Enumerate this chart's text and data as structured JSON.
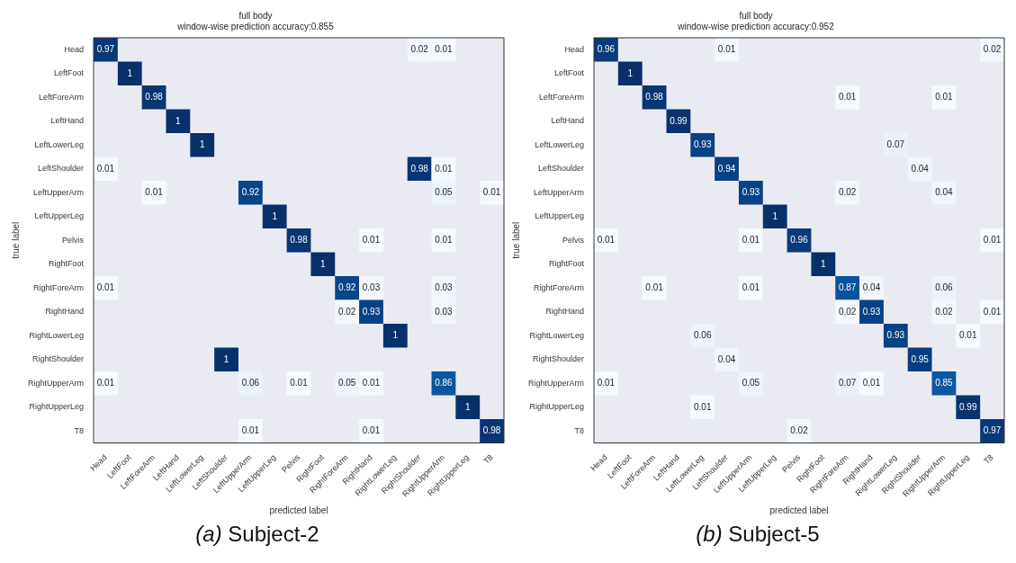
{
  "chart_data": [
    {
      "type": "heatmap",
      "title": "full body",
      "subtitle": "window-wise prediction accuracy:0.855",
      "xlabel": "predicted label",
      "ylabel": "true label",
      "annotations": [
        "(a) Subject-2"
      ],
      "data_labels": true,
      "categories": [
        "Head",
        "LeftFoot",
        "LeftForeArm",
        "LeftHand",
        "LeftLowerLeg",
        "LeftShoulder",
        "LeftUpperArm",
        "LeftUpperLeg",
        "Pelvis",
        "RightFoot",
        "RightForeArm",
        "RightHand",
        "RightLowerLeg",
        "RightShoulder",
        "RightUpperArm",
        "RightUpperLeg",
        "T8"
      ],
      "y_categories": [
        "Head",
        "LeftFoot",
        "LeftForeArm",
        "LeftHand",
        "LeftLowerLeg",
        "LeftShoulder",
        "LeftUpperArm",
        "LeftUpperLeg",
        "Pelvis",
        "RightFoot",
        "RightForeArm",
        "RightHand",
        "RightLowerLeg",
        "RightShoulder",
        "RightUpperArm",
        "RightUpperLeg",
        "T8"
      ],
      "cells": [
        [
          0.97,
          null,
          null,
          null,
          null,
          null,
          null,
          null,
          null,
          null,
          null,
          null,
          null,
          0.02,
          0.01,
          null,
          null
        ],
        [
          null,
          1,
          null,
          null,
          null,
          null,
          null,
          null,
          null,
          null,
          null,
          null,
          null,
          null,
          null,
          null,
          null
        ],
        [
          null,
          null,
          0.98,
          null,
          null,
          null,
          null,
          null,
          null,
          null,
          null,
          null,
          null,
          null,
          null,
          null,
          null
        ],
        [
          null,
          null,
          null,
          1,
          null,
          null,
          null,
          null,
          null,
          null,
          null,
          null,
          null,
          null,
          null,
          null,
          null
        ],
        [
          null,
          null,
          null,
          null,
          1,
          null,
          null,
          null,
          null,
          null,
          null,
          null,
          null,
          null,
          null,
          null,
          null
        ],
        [
          0.01,
          null,
          null,
          null,
          null,
          null,
          null,
          null,
          null,
          null,
          null,
          null,
          null,
          0.98,
          0.01,
          null,
          null
        ],
        [
          null,
          null,
          0.01,
          null,
          null,
          null,
          0.92,
          null,
          null,
          null,
          null,
          null,
          null,
          null,
          0.05,
          null,
          0.01
        ],
        [
          null,
          null,
          null,
          null,
          null,
          null,
          null,
          1,
          null,
          null,
          null,
          null,
          null,
          null,
          null,
          null,
          null
        ],
        [
          null,
          null,
          null,
          null,
          null,
          null,
          null,
          null,
          0.98,
          null,
          null,
          0.01,
          null,
          null,
          0.01,
          null,
          null
        ],
        [
          null,
          null,
          null,
          null,
          null,
          null,
          null,
          null,
          null,
          1,
          null,
          null,
          null,
          null,
          null,
          null,
          null
        ],
        [
          0.01,
          null,
          null,
          null,
          null,
          null,
          null,
          null,
          null,
          null,
          0.92,
          0.03,
          null,
          null,
          0.03,
          null,
          null
        ],
        [
          null,
          null,
          null,
          null,
          null,
          null,
          null,
          null,
          null,
          null,
          0.02,
          0.93,
          null,
          null,
          0.03,
          null,
          null
        ],
        [
          null,
          null,
          null,
          null,
          null,
          null,
          null,
          null,
          null,
          null,
          null,
          null,
          1,
          null,
          null,
          null,
          null
        ],
        [
          null,
          null,
          null,
          null,
          null,
          1,
          null,
          null,
          null,
          null,
          null,
          null,
          null,
          null,
          null,
          null,
          null
        ],
        [
          0.01,
          null,
          null,
          null,
          null,
          null,
          0.06,
          null,
          0.01,
          null,
          0.05,
          0.01,
          null,
          null,
          0.86,
          null,
          null
        ],
        [
          null,
          null,
          null,
          null,
          null,
          null,
          null,
          null,
          null,
          null,
          null,
          null,
          null,
          null,
          null,
          1,
          null
        ],
        [
          null,
          null,
          null,
          null,
          null,
          null,
          0.01,
          null,
          null,
          null,
          null,
          0.01,
          null,
          null,
          null,
          null,
          0.98
        ]
      ]
    },
    {
      "type": "heatmap",
      "title": "full body",
      "subtitle": "window-wise prediction accuracy:0.952",
      "xlabel": "predicted label",
      "ylabel": "true label",
      "annotations": [
        "(b) Subject-5"
      ],
      "data_labels": true,
      "categories": [
        "Head",
        "LeftFoot",
        "LeftForeArm",
        "LeftHand",
        "LeftLowerLeg",
        "LeftShoulder",
        "LeftUpperArm",
        "LeftUpperLeg",
        "Pelvis",
        "RightFoot",
        "RightForeArm",
        "RightHand",
        "RightLowerLeg",
        "RightShoulder",
        "RightUpperArm",
        "RightUpperLeg",
        "T8"
      ],
      "y_categories": [
        "Head",
        "LeftFoot",
        "LeftForeArm",
        "LeftHand",
        "LeftLowerLeg",
        "LeftShoulder",
        "LeftUpperArm",
        "LeftUpperLeg",
        "Pelvis",
        "RightFoot",
        "RightForeArm",
        "RightHand",
        "RightLowerLeg",
        "RightShoulder",
        "RightUpperArm",
        "RightUpperLeg",
        "T8"
      ],
      "cells": [
        [
          0.96,
          null,
          null,
          null,
          null,
          0.01,
          null,
          null,
          null,
          null,
          null,
          null,
          null,
          null,
          null,
          null,
          0.02
        ],
        [
          null,
          1,
          null,
          null,
          null,
          null,
          null,
          null,
          null,
          null,
          null,
          null,
          null,
          null,
          null,
          null,
          null
        ],
        [
          null,
          null,
          0.98,
          null,
          null,
          null,
          null,
          null,
          null,
          null,
          0.01,
          null,
          null,
          null,
          0.01,
          null,
          null
        ],
        [
          null,
          null,
          null,
          0.99,
          null,
          null,
          null,
          null,
          null,
          null,
          null,
          null,
          null,
          null,
          null,
          null,
          null
        ],
        [
          null,
          null,
          null,
          null,
          0.93,
          null,
          null,
          null,
          null,
          null,
          null,
          null,
          0.07,
          null,
          null,
          null,
          null
        ],
        [
          null,
          null,
          null,
          null,
          null,
          0.94,
          null,
          null,
          null,
          null,
          null,
          null,
          null,
          0.04,
          null,
          null,
          null
        ],
        [
          null,
          null,
          null,
          null,
          null,
          null,
          0.93,
          null,
          null,
          null,
          0.02,
          null,
          null,
          null,
          0.04,
          null,
          null
        ],
        [
          null,
          null,
          null,
          null,
          null,
          null,
          null,
          1,
          null,
          null,
          null,
          null,
          null,
          null,
          null,
          null,
          null
        ],
        [
          0.01,
          null,
          null,
          null,
          null,
          null,
          0.01,
          null,
          0.96,
          null,
          null,
          null,
          null,
          null,
          null,
          null,
          0.01
        ],
        [
          null,
          null,
          null,
          null,
          null,
          null,
          null,
          null,
          null,
          1,
          null,
          null,
          null,
          null,
          null,
          null,
          null
        ],
        [
          null,
          null,
          0.01,
          null,
          null,
          null,
          0.01,
          null,
          null,
          null,
          0.87,
          0.04,
          null,
          null,
          0.06,
          null,
          null
        ],
        [
          null,
          null,
          null,
          null,
          null,
          null,
          null,
          null,
          null,
          null,
          0.02,
          0.93,
          null,
          null,
          0.02,
          null,
          0.01
        ],
        [
          null,
          null,
          null,
          null,
          0.06,
          null,
          null,
          null,
          null,
          null,
          null,
          null,
          0.93,
          null,
          null,
          0.01,
          null
        ],
        [
          null,
          null,
          null,
          null,
          null,
          0.04,
          null,
          null,
          null,
          null,
          null,
          null,
          null,
          0.95,
          null,
          null,
          null
        ],
        [
          0.01,
          null,
          null,
          null,
          null,
          null,
          0.05,
          null,
          null,
          null,
          0.07,
          0.01,
          null,
          null,
          0.85,
          null,
          null
        ],
        [
          null,
          null,
          null,
          null,
          0.01,
          null,
          null,
          null,
          null,
          null,
          null,
          null,
          null,
          null,
          null,
          0.99,
          null
        ],
        [
          null,
          null,
          null,
          null,
          null,
          null,
          null,
          null,
          0.02,
          null,
          null,
          null,
          null,
          null,
          null,
          null,
          0.97
        ]
      ]
    }
  ]
}
